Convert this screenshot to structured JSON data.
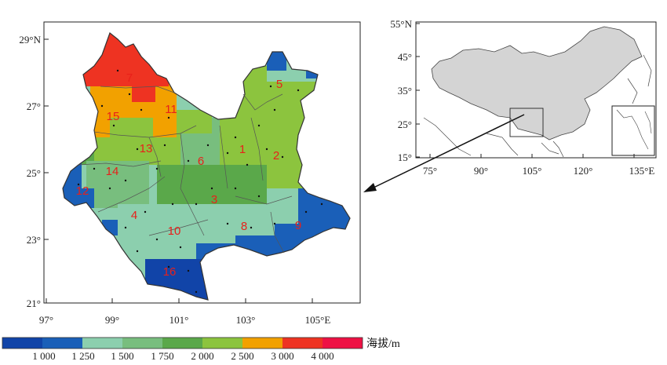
{
  "main_map": {
    "lat_labels": [
      "29°N",
      "27°",
      "25°",
      "23°",
      "21°"
    ],
    "lon_labels": [
      "97°",
      "99°",
      "101°",
      "103°",
      "105°E"
    ],
    "regions": [
      "1",
      "2",
      "3",
      "4",
      "5",
      "6",
      "7",
      "8",
      "9",
      "10",
      "11",
      "12",
      "13",
      "14",
      "15",
      "16"
    ]
  },
  "inset_map": {
    "lat_labels": [
      "55°N",
      "45°",
      "35°",
      "25°",
      "15°"
    ],
    "lon_labels": [
      "75°",
      "90°",
      "105°",
      "120°",
      "135°E"
    ],
    "land_color": "#d4d4d4"
  },
  "legend": {
    "title": "海拔/m",
    "ticks": [
      "1 000",
      "1 250",
      "1 500",
      "1 750",
      "2 000",
      "2 500",
      "3 000",
      "4 000"
    ],
    "colors": [
      "#1144a8",
      "#1a5fb8",
      "#8ccfae",
      "#78be7e",
      "#5aa84a",
      "#8cc43e",
      "#f2a100",
      "#ee3322",
      "#ee1144"
    ]
  }
}
